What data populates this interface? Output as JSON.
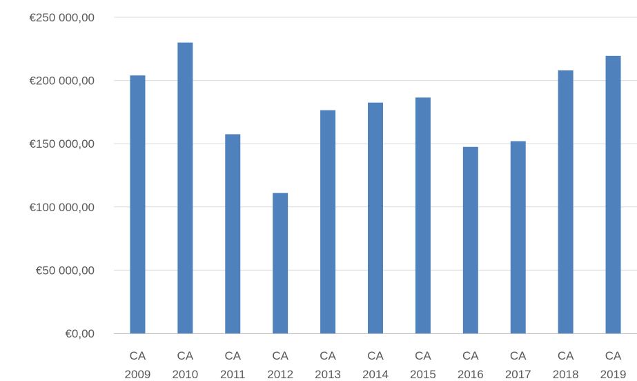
{
  "chart_data": {
    "type": "bar",
    "categories": [
      [
        "CA",
        "2009"
      ],
      [
        "CA",
        "2010"
      ],
      [
        "CA",
        "2011"
      ],
      [
        "CA",
        "2012"
      ],
      [
        "CA",
        "2013"
      ],
      [
        "CA",
        "2014"
      ],
      [
        "CA",
        "2015"
      ],
      [
        "CA",
        "2016"
      ],
      [
        "CA",
        "2017"
      ],
      [
        "CA",
        "2018"
      ],
      [
        "CA",
        "2019"
      ]
    ],
    "values": [
      204000,
      230000,
      157500,
      111000,
      176500,
      182500,
      186500,
      147500,
      152000,
      208000,
      219500
    ],
    "ylim": [
      0,
      250000
    ],
    "yticks": [
      0,
      50000,
      100000,
      150000,
      200000,
      250000
    ],
    "ytick_labels": [
      "€0,00",
      "€50 000,00",
      "€100 000,00",
      "€150 000,00",
      "€200 000,00",
      "€250 000,00"
    ],
    "bar_color": "#4f81bd",
    "grid": true,
    "legend": false
  }
}
